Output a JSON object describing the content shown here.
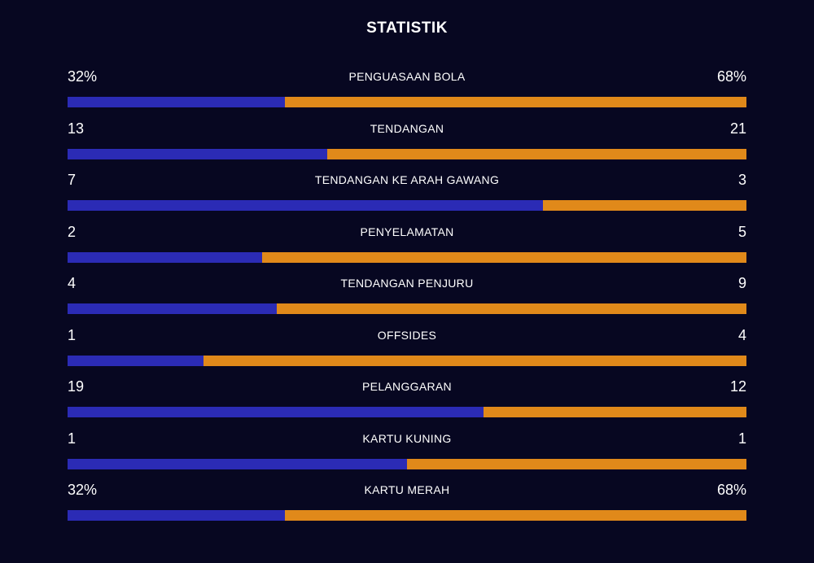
{
  "title": "STATISTIK",
  "colors": {
    "home": "#2b2bb5",
    "away": "#e0891a",
    "background": "#070721"
  },
  "stats": [
    {
      "label": "PENGUASAAN BOLA",
      "home": "32%",
      "away": "68%",
      "home_share": 0.32
    },
    {
      "label": "TENDANGAN",
      "home": "13",
      "away": "21",
      "home_share": 0.382
    },
    {
      "label": "TENDANGAN KE ARAH GAWANG",
      "home": "7",
      "away": "3",
      "home_share": 0.7
    },
    {
      "label": "PENYELAMATAN",
      "home": "2",
      "away": "5",
      "home_share": 0.286
    },
    {
      "label": "TENDANGAN PENJURU",
      "home": "4",
      "away": "9",
      "home_share": 0.308
    },
    {
      "label": "OFFSIDES",
      "home": "1",
      "away": "4",
      "home_share": 0.2
    },
    {
      "label": "PELANGGARAN",
      "home": "19",
      "away": "12",
      "home_share": 0.613
    },
    {
      "label": "KARTU KUNING",
      "home": "1",
      "away": "1",
      "home_share": 0.5
    },
    {
      "label": "KARTU MERAH",
      "home": "32%",
      "away": "68%",
      "home_share": 0.32
    }
  ]
}
